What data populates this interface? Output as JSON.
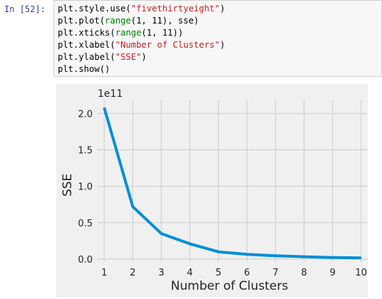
{
  "cell": {
    "prompt": "In [52]:",
    "code_lines": [
      [
        {
          "t": "plt.style.use("
        },
        {
          "t": "\"fivethirtyeight\"",
          "c": "str"
        },
        {
          "t": ")"
        }
      ],
      [
        {
          "t": "plt.plot("
        },
        {
          "t": "range",
          "c": "bi"
        },
        {
          "t": "(1, 11), sse)"
        }
      ],
      [
        {
          "t": "plt.xticks("
        },
        {
          "t": "range",
          "c": "bi"
        },
        {
          "t": "(1, 11))"
        }
      ],
      [
        {
          "t": "plt.xlabel("
        },
        {
          "t": "\"Number of Clusters\"",
          "c": "str"
        },
        {
          "t": ")"
        }
      ],
      [
        {
          "t": "plt.ylabel("
        },
        {
          "t": "\"SSE\"",
          "c": "str"
        },
        {
          "t": ")"
        }
      ],
      [
        {
          "t": "plt.show()"
        }
      ]
    ]
  },
  "chart_data": {
    "type": "line",
    "title": "",
    "xlabel": "Number of Clusters",
    "ylabel": "SSE",
    "offset_label": "1e11",
    "x": [
      1,
      2,
      3,
      4,
      5,
      6,
      7,
      8,
      9,
      10
    ],
    "series": [
      {
        "values": [
          2.08,
          0.72,
          0.35,
          0.21,
          0.1,
          0.065,
          0.045,
          0.032,
          0.022,
          0.017
        ]
      }
    ],
    "xticks": [
      "1",
      "2",
      "3",
      "4",
      "5",
      "6",
      "7",
      "8",
      "9",
      "10"
    ],
    "yticks": [
      "0.0",
      "0.5",
      "1.0",
      "1.5",
      "2.0"
    ],
    "ytick_values": [
      0.0,
      0.5,
      1.0,
      1.5,
      2.0
    ],
    "xlim": [
      0.77,
      10.23
    ],
    "ylim": [
      -0.04,
      2.19
    ],
    "grid": true,
    "line_color": "#008fd5",
    "background": "#f0f0f0",
    "grid_color": "#cbcbcb"
  }
}
